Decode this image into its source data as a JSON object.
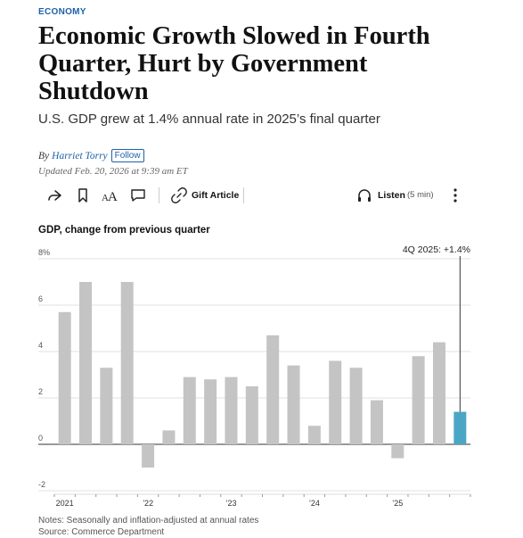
{
  "section": "ECONOMY",
  "headline": "Economic Growth Slowed in Fourth Quarter, Hurt by Government Shutdown",
  "dek": "U.S. GDP grew at 1.4% annual rate in 2025’s final quarter",
  "byline": {
    "prefix": "By",
    "author": "Harriet Torry",
    "follow_label": "Follow",
    "updated": "Updated Feb. 20, 2026 at 9:39 am ET"
  },
  "toolbar": {
    "gift_label": "Gift Article",
    "listen_label": "Listen",
    "listen_duration": "(5 min)"
  },
  "colors": {
    "accent": "#1d62a8",
    "bar": "#c4c4c4",
    "highlight_bar": "#4ba6c5"
  },
  "chart_data": {
    "type": "bar",
    "title": "GDP, change from previous quarter",
    "ylabel": "",
    "xlabel": "",
    "ylim": [
      -2,
      8
    ],
    "y_ticks": [
      8,
      6,
      4,
      2,
      0,
      -2
    ],
    "y_tick_labels": [
      "8%",
      "6",
      "4",
      "2",
      "0",
      "-2"
    ],
    "categories": [
      "1Q 2021",
      "2Q 2021",
      "3Q 2021",
      "4Q 2021",
      "1Q 2022",
      "2Q 2022",
      "3Q 2022",
      "4Q 2022",
      "1Q 2023",
      "2Q 2023",
      "3Q 2023",
      "4Q 2023",
      "1Q 2024",
      "2Q 2024",
      "3Q 2024",
      "4Q 2024",
      "1Q 2025",
      "2Q 2025",
      "3Q 2025",
      "4Q 2025"
    ],
    "values": [
      5.7,
      7.0,
      3.3,
      7.0,
      -1.0,
      0.6,
      2.9,
      2.8,
      2.9,
      2.5,
      4.7,
      3.4,
      0.8,
      3.6,
      3.3,
      1.9,
      -0.6,
      3.8,
      4.4,
      1.4
    ],
    "x_tick_labels": [
      {
        "label": "2021",
        "index": 0
      },
      {
        "label": "’22",
        "index": 4
      },
      {
        "label": "’23",
        "index": 8
      },
      {
        "label": "’24",
        "index": 12
      },
      {
        "label": "’25",
        "index": 16
      }
    ],
    "annotation": {
      "text": "4Q 2025: +1.4%",
      "index": 19
    },
    "grid": true
  },
  "notes": {
    "line1": "Notes: Seasonally and inflation-adjusted at annual rates",
    "line2": "Source: Commerce Department"
  }
}
